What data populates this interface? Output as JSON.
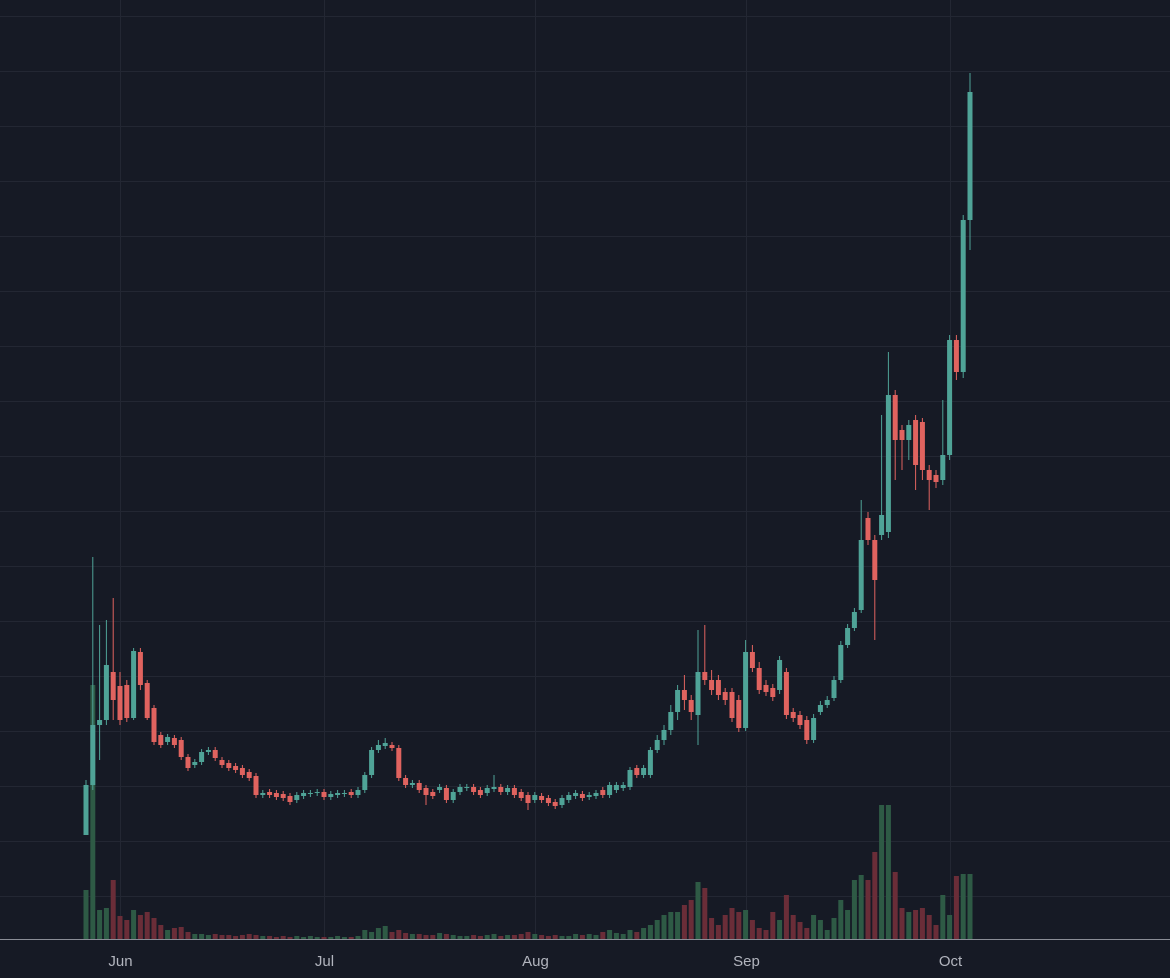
{
  "chart_data": {
    "type": "candlestick",
    "categories": [
      null,
      null,
      null,
      null,
      null,
      "Jun",
      null,
      null,
      null,
      null,
      null,
      null,
      null,
      null,
      null,
      null,
      null,
      null,
      null,
      null,
      null,
      null,
      null,
      null,
      null,
      null,
      null,
      null,
      null,
      null,
      null,
      null,
      null,
      null,
      null,
      "Jul",
      null,
      null,
      null,
      null,
      null,
      null,
      null,
      null,
      null,
      null,
      null,
      null,
      null,
      null,
      null,
      null,
      null,
      null,
      null,
      null,
      null,
      null,
      null,
      null,
      null,
      null,
      null,
      null,
      null,
      null,
      "Aug",
      null,
      null,
      null,
      null,
      null,
      null,
      null,
      null,
      null,
      null,
      null,
      null,
      null,
      null,
      null,
      null,
      null,
      null,
      null,
      null,
      null,
      null,
      null,
      null,
      null,
      null,
      null,
      null,
      null,
      null,
      "Sep",
      null,
      null,
      null,
      null,
      null,
      null,
      null,
      null,
      null,
      null,
      null,
      null,
      null,
      null,
      null,
      null,
      null,
      null,
      null,
      null,
      null,
      null,
      null,
      null,
      null,
      null,
      null,
      null,
      null,
      "Oct",
      null,
      null,
      null
    ],
    "open": [
      165,
      215,
      275,
      280,
      328,
      314,
      315,
      282,
      348,
      317,
      292,
      265,
      258,
      262,
      260,
      243,
      235,
      238,
      248,
      250,
      240,
      237,
      234,
      232,
      228,
      224,
      205,
      208,
      207,
      206,
      204,
      200,
      204,
      206,
      207,
      208,
      203,
      205,
      206,
      208,
      205,
      210,
      225,
      250,
      254,
      255,
      252,
      222,
      215,
      217,
      212,
      208,
      210,
      212,
      200,
      208,
      212,
      213,
      210,
      207,
      211,
      213,
      208,
      212,
      208,
      205,
      200,
      204,
      202,
      198,
      195,
      200,
      204,
      206,
      203,
      204,
      210,
      205,
      210,
      212,
      213,
      232,
      225,
      225,
      250,
      260,
      270,
      288,
      310,
      300,
      285,
      328,
      320,
      320,
      308,
      308,
      300,
      272,
      348,
      332,
      315,
      312,
      310,
      328,
      288,
      285,
      280,
      260,
      288,
      295,
      302,
      320,
      355,
      372,
      390,
      482,
      460,
      465,
      468,
      605,
      570,
      560,
      580,
      578,
      530,
      525,
      520,
      545,
      660,
      628,
      780
    ],
    "high": [
      220,
      443,
      375,
      380,
      402,
      328,
      320,
      352,
      352,
      320,
      295,
      268,
      266,
      265,
      263,
      246,
      241,
      251,
      253,
      253,
      243,
      240,
      237,
      235,
      231,
      227,
      210,
      211,
      210,
      209,
      207,
      208,
      210,
      210,
      211,
      211,
      209,
      210,
      210,
      211,
      213,
      228,
      253,
      260,
      262,
      258,
      255,
      225,
      220,
      220,
      215,
      211,
      216,
      215,
      211,
      216,
      216,
      216,
      213,
      215,
      225,
      216,
      215,
      215,
      211,
      208,
      208,
      207,
      205,
      201,
      205,
      208,
      210,
      209,
      208,
      210,
      213,
      218,
      218,
      218,
      233,
      235,
      235,
      253,
      265,
      275,
      295,
      315,
      325,
      305,
      370,
      375,
      330,
      325,
      312,
      312,
      305,
      360,
      355,
      338,
      320,
      316,
      344,
      332,
      292,
      289,
      284,
      286,
      299,
      304,
      324,
      359,
      376,
      392,
      500,
      488,
      465,
      585,
      648,
      610,
      575,
      580,
      585,
      582,
      535,
      530,
      600,
      665,
      665,
      785,
      927
    ],
    "low": [
      165,
      210,
      240,
      275,
      280,
      275,
      278,
      280,
      310,
      280,
      255,
      252,
      255,
      252,
      240,
      229,
      232,
      235,
      245,
      239,
      232,
      229,
      227,
      222,
      219,
      202,
      202,
      202,
      200,
      199,
      195,
      197,
      201,
      203,
      204,
      200,
      200,
      202,
      203,
      202,
      202,
      207,
      222,
      247,
      251,
      249,
      219,
      212,
      212,
      207,
      195,
      201,
      207,
      197,
      197,
      205,
      209,
      205,
      202,
      204,
      208,
      205,
      205,
      202,
      199,
      190,
      197,
      197,
      194,
      191,
      192,
      197,
      201,
      199,
      200,
      201,
      202,
      202,
      207,
      209,
      210,
      222,
      222,
      222,
      247,
      255,
      265,
      280,
      290,
      280,
      255,
      315,
      305,
      300,
      295,
      278,
      268,
      269,
      328,
      306,
      304,
      299,
      306,
      281,
      278,
      271,
      256,
      257,
      285,
      292,
      299,
      317,
      352,
      369,
      387,
      455,
      360,
      460,
      462,
      520,
      530,
      540,
      510,
      520,
      490,
      512,
      515,
      540,
      620,
      622,
      750
    ],
    "close": [
      215,
      275,
      280,
      335,
      300,
      280,
      282,
      349,
      315,
      282,
      258,
      255,
      263,
      255,
      243,
      232,
      238,
      248,
      250,
      242,
      235,
      232,
      230,
      225,
      222,
      205,
      207,
      205,
      203,
      202,
      198,
      205,
      207,
      207,
      208,
      203,
      206,
      207,
      207,
      205,
      210,
      225,
      250,
      255,
      257,
      252,
      222,
      215,
      217,
      210,
      205,
      204,
      213,
      200,
      208,
      213,
      213,
      208,
      205,
      212,
      213,
      208,
      212,
      205,
      202,
      197,
      205,
      200,
      197,
      194,
      202,
      205,
      207,
      202,
      205,
      207,
      205,
      215,
      215,
      215,
      230,
      225,
      232,
      250,
      260,
      270,
      288,
      310,
      300,
      288,
      328,
      320,
      310,
      305,
      300,
      282,
      272,
      348,
      332,
      310,
      308,
      303,
      340,
      285,
      282,
      275,
      260,
      282,
      295,
      300,
      320,
      355,
      372,
      388,
      460,
      460,
      420,
      485,
      605,
      560,
      560,
      575,
      535,
      530,
      520,
      518,
      545,
      660,
      628,
      780,
      908
    ],
    "volume": [
      50,
      255,
      30,
      32,
      60,
      24,
      20,
      30,
      25,
      28,
      22,
      15,
      10,
      12,
      13,
      8,
      6,
      6,
      5,
      6,
      5,
      5,
      4,
      5,
      6,
      5,
      4,
      4,
      3,
      4,
      3,
      4,
      3,
      4,
      3,
      3,
      3,
      4,
      3,
      3,
      4,
      10,
      8,
      12,
      14,
      8,
      10,
      7,
      6,
      6,
      5,
      5,
      7,
      6,
      5,
      4,
      4,
      5,
      4,
      5,
      6,
      4,
      5,
      5,
      6,
      8,
      6,
      5,
      4,
      5,
      4,
      4,
      6,
      5,
      6,
      5,
      8,
      10,
      7,
      6,
      10,
      8,
      12,
      15,
      20,
      25,
      28,
      28,
      35,
      40,
      58,
      52,
      22,
      15,
      25,
      32,
      28,
      30,
      20,
      12,
      10,
      28,
      20,
      45,
      25,
      18,
      12,
      25,
      20,
      10,
      22,
      40,
      30,
      60,
      65,
      60,
      88,
      135,
      135,
      68,
      32,
      28,
      30,
      32,
      25,
      15,
      45,
      25,
      64,
      66,
      66
    ],
    "ylim": [
      60,
      1000
    ],
    "yticks": [
      104,
      159,
      214,
      269,
      324,
      379,
      434,
      489,
      544,
      599,
      654,
      709,
      764,
      819,
      874,
      929,
      984
    ],
    "volume_lim": [
      0,
      940
    ],
    "grid": true,
    "up_color": "#4fa397",
    "down_color": "#e0635f",
    "volume_up_color": "#2e5a45",
    "volume_down_color": "#6a2d38"
  }
}
